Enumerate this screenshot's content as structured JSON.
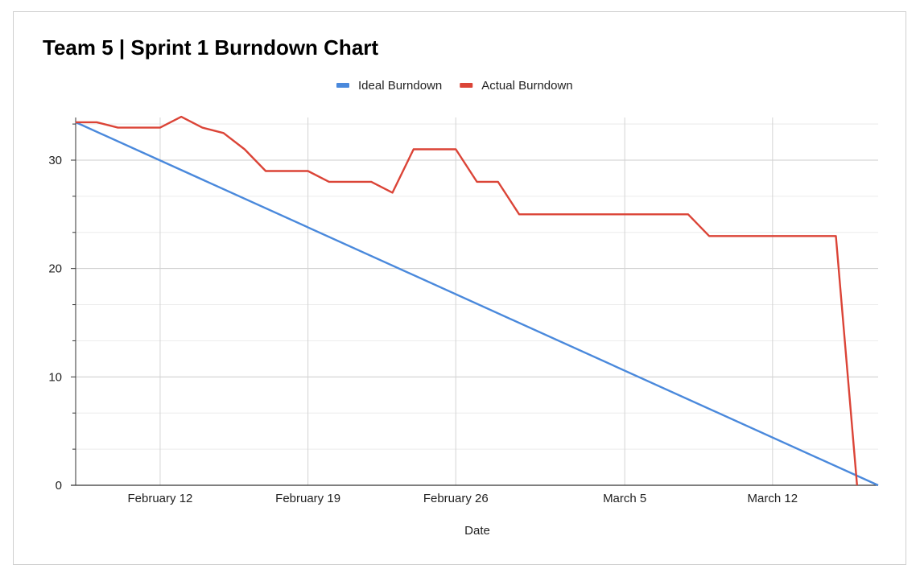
{
  "chart_data": {
    "type": "line",
    "title": "Team 5 | Sprint 1 Burndown Chart",
    "xlabel": "Date",
    "ylabel": "",
    "x_start": "2024-02-08",
    "x_end": "2024-03-17",
    "x_ticks": [
      {
        "date": "2024-02-12",
        "label": "February 12"
      },
      {
        "date": "2024-02-19",
        "label": "February 19"
      },
      {
        "date": "2024-02-26",
        "label": "February 26"
      },
      {
        "date": "2024-03-05",
        "label": "March 5"
      },
      {
        "date": "2024-03-12",
        "label": "March 12"
      }
    ],
    "y_ticks": [
      0,
      10,
      20,
      30
    ],
    "ylim": [
      0,
      34
    ],
    "grid": true,
    "legend_position": "top",
    "series": [
      {
        "name": "Ideal Burndown",
        "color": "#4a89dc",
        "points": [
          {
            "x": "2024-02-08",
            "y": 33.5
          },
          {
            "x": "2024-03-17",
            "y": 0
          }
        ]
      },
      {
        "name": "Actual Burndown",
        "color": "#db4437",
        "points": [
          {
            "x": "2024-02-08",
            "y": 33.5
          },
          {
            "x": "2024-02-09",
            "y": 33.5
          },
          {
            "x": "2024-02-10",
            "y": 33
          },
          {
            "x": "2024-02-11",
            "y": 33
          },
          {
            "x": "2024-02-12",
            "y": 33
          },
          {
            "x": "2024-02-13",
            "y": 34
          },
          {
            "x": "2024-02-14",
            "y": 33
          },
          {
            "x": "2024-02-15",
            "y": 32.5
          },
          {
            "x": "2024-02-16",
            "y": 31
          },
          {
            "x": "2024-02-17",
            "y": 29
          },
          {
            "x": "2024-02-18",
            "y": 29
          },
          {
            "x": "2024-02-19",
            "y": 29
          },
          {
            "x": "2024-02-20",
            "y": 28
          },
          {
            "x": "2024-02-21",
            "y": 28
          },
          {
            "x": "2024-02-22",
            "y": 28
          },
          {
            "x": "2024-02-23",
            "y": 27
          },
          {
            "x": "2024-02-24",
            "y": 31
          },
          {
            "x": "2024-02-25",
            "y": 31
          },
          {
            "x": "2024-02-26",
            "y": 31
          },
          {
            "x": "2024-02-27",
            "y": 28
          },
          {
            "x": "2024-02-28",
            "y": 28
          },
          {
            "x": "2024-02-29",
            "y": 25
          },
          {
            "x": "2024-03-01",
            "y": 25
          },
          {
            "x": "2024-03-02",
            "y": 25
          },
          {
            "x": "2024-03-03",
            "y": 25
          },
          {
            "x": "2024-03-04",
            "y": 25
          },
          {
            "x": "2024-03-05",
            "y": 25
          },
          {
            "x": "2024-03-06",
            "y": 25
          },
          {
            "x": "2024-03-07",
            "y": 25
          },
          {
            "x": "2024-03-08",
            "y": 25
          },
          {
            "x": "2024-03-09",
            "y": 23
          },
          {
            "x": "2024-03-10",
            "y": 23
          },
          {
            "x": "2024-03-11",
            "y": 23
          },
          {
            "x": "2024-03-12",
            "y": 23
          },
          {
            "x": "2024-03-13",
            "y": 23
          },
          {
            "x": "2024-03-14",
            "y": 23
          },
          {
            "x": "2024-03-15",
            "y": 23
          },
          {
            "x": "2024-03-16",
            "y": 0
          }
        ]
      }
    ]
  }
}
